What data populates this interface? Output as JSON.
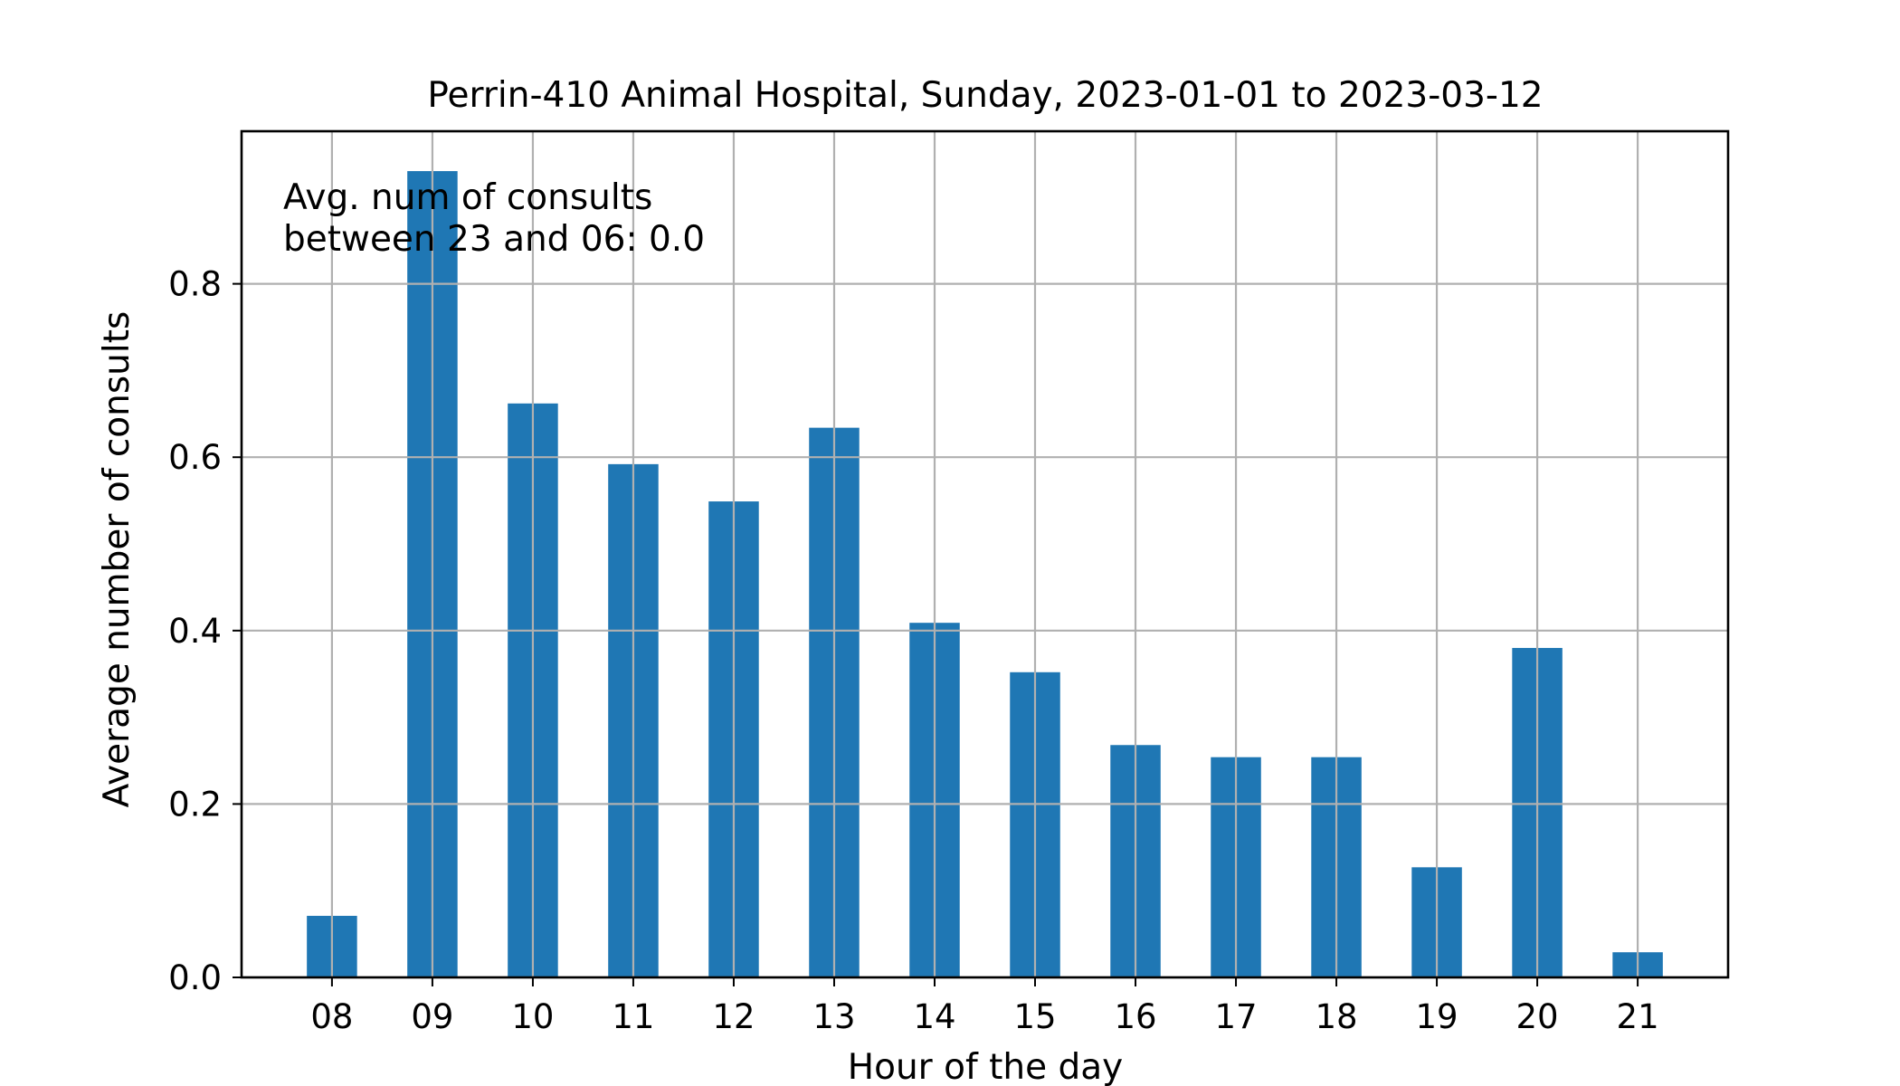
{
  "chart_data": {
    "type": "bar",
    "title": "Perrin-410 Animal Hospital, Sunday, 2023-01-01 to 2023-03-12",
    "xlabel": "Hour of the day",
    "ylabel": "Average number of consults",
    "categories": [
      "08",
      "09",
      "10",
      "11",
      "12",
      "13",
      "14",
      "15",
      "16",
      "17",
      "18",
      "19",
      "20",
      "21"
    ],
    "values": [
      0.071,
      0.93,
      0.662,
      0.592,
      0.549,
      0.634,
      0.409,
      0.352,
      0.268,
      0.254,
      0.254,
      0.127,
      0.38,
      0.029
    ],
    "ylim": [
      0,
      0.976
    ],
    "yticks": [
      0.0,
      0.2,
      0.4,
      0.6,
      0.8
    ],
    "ytick_labels": [
      "0.0",
      "0.2",
      "0.4",
      "0.6",
      "0.8"
    ],
    "grid": true,
    "bar_color": "#1f77b4",
    "annotation": {
      "line1": "Avg. num of consults",
      "line2": "between 23 and 06: 0.0"
    }
  }
}
